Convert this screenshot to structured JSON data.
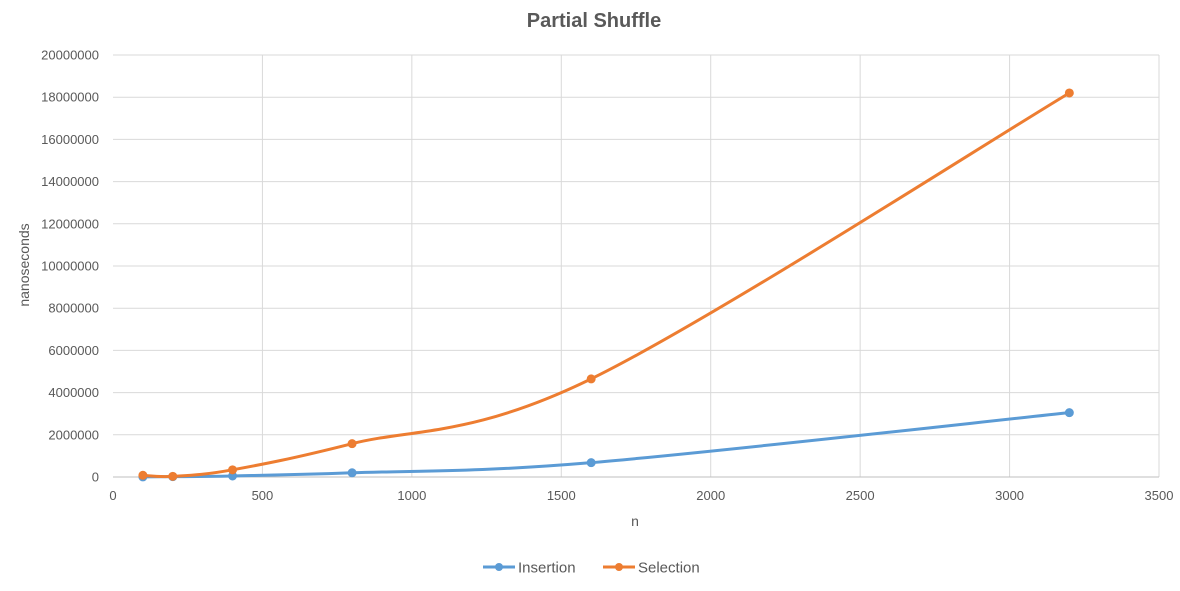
{
  "chart_data": {
    "type": "line",
    "title": "Partial Shuffle",
    "xlabel": "n",
    "ylabel": "nanoseconds",
    "xlim": [
      0,
      3500
    ],
    "ylim": [
      0,
      20000000
    ],
    "x_ticks": [
      "0",
      "500",
      "1000",
      "1500",
      "2000",
      "2500",
      "3000",
      "3500"
    ],
    "y_ticks": [
      "0",
      "2000000",
      "4000000",
      "6000000",
      "8000000",
      "10000000",
      "12000000",
      "14000000",
      "16000000",
      "18000000",
      "20000000"
    ],
    "grid": true,
    "smooth": true,
    "legend_position": "bottom",
    "series": [
      {
        "name": "Insertion",
        "color": "#5b9bd5",
        "x": [
          100,
          200,
          400,
          800,
          1600,
          3200
        ],
        "y": [
          5000,
          15000,
          50000,
          200000,
          680000,
          3050000
        ]
      },
      {
        "name": "Selection",
        "color": "#ed7d31",
        "x": [
          100,
          200,
          400,
          800,
          1600,
          3200
        ],
        "y": [
          80000,
          30000,
          340000,
          1580000,
          4650000,
          18200000
        ]
      }
    ]
  }
}
